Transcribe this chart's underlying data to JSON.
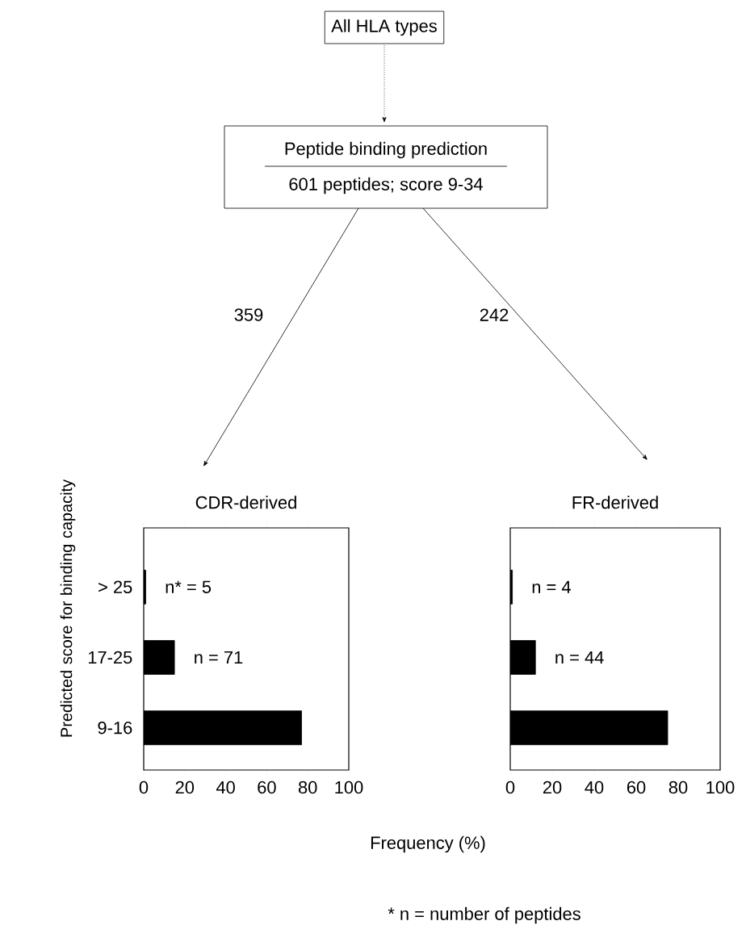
{
  "chart_data": [
    {
      "type": "other",
      "annotations": [
        "All HLA types",
        "Peptide binding prediction",
        "601 peptides; score 9-34",
        "359",
        "242",
        "* n = number of peptides"
      ]
    },
    {
      "type": "bar",
      "orientation": "horizontal",
      "title": "CDR-derived",
      "xlabel": "Frequency (%)",
      "ylabel": "Predicted score for binding capacity",
      "categories": [
        "> 25",
        "17-25",
        "9-16"
      ],
      "values": [
        1,
        15,
        77
      ],
      "color": "#000000",
      "xlim": [
        0,
        100
      ],
      "xticks": [
        0,
        20,
        40,
        60,
        80,
        100
      ],
      "grid": false,
      "annotations": [
        "n* = 5",
        "n = 71"
      ]
    },
    {
      "type": "bar",
      "orientation": "horizontal",
      "title": "FR-derived",
      "categories": [
        null,
        null,
        null
      ],
      "values": [
        1,
        12,
        75
      ],
      "color": "#000000",
      "xlim": [
        0,
        100
      ],
      "xticks": [
        0,
        20,
        40,
        60,
        80,
        100
      ],
      "tick_labels": "x",
      "grid": false,
      "annotations": [
        "n = 4",
        "n = 44"
      ]
    }
  ]
}
